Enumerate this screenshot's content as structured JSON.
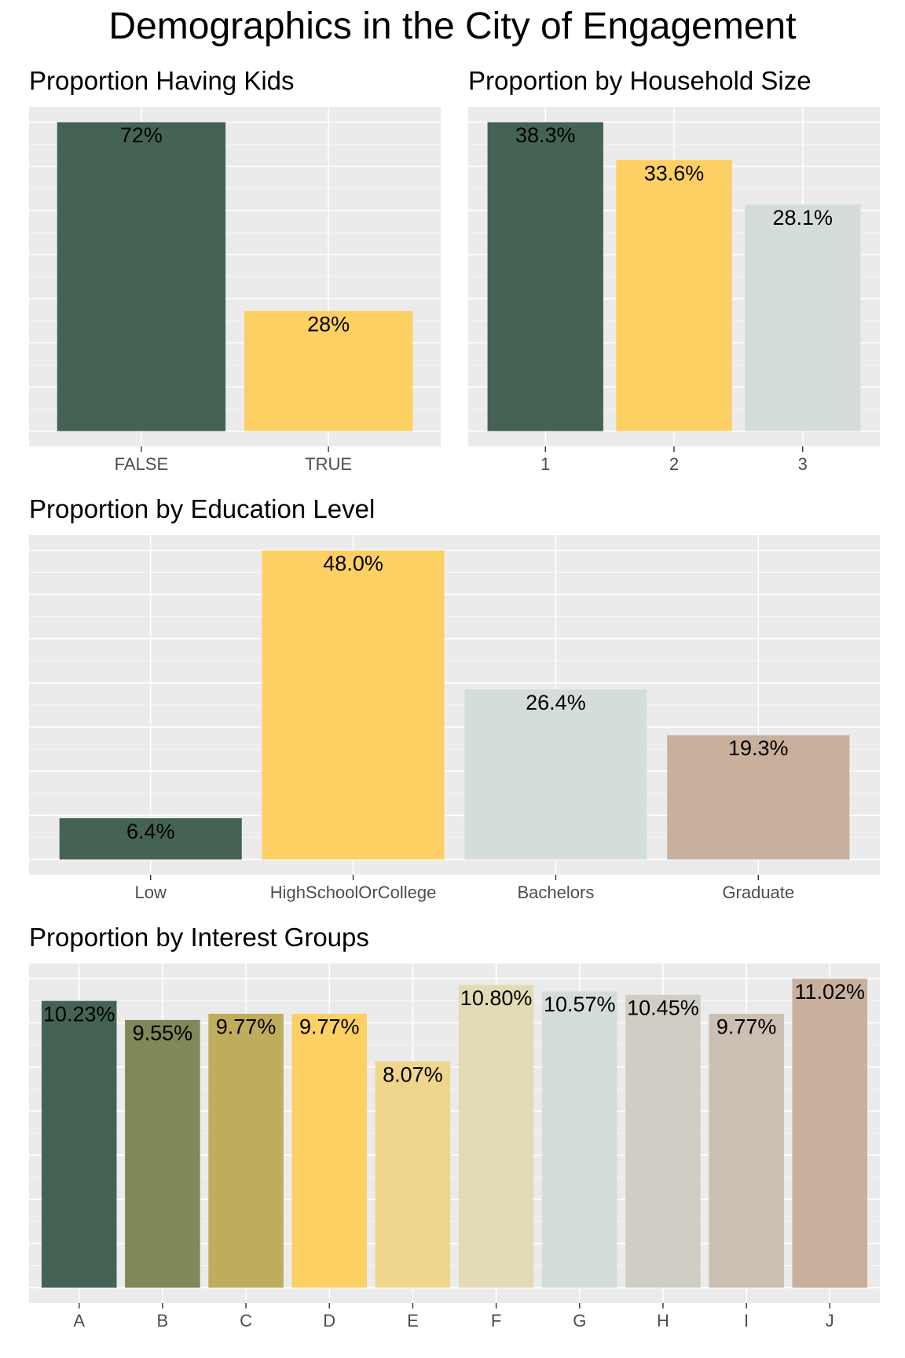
{
  "title": "Demographics in the City of Engagement",
  "chart_data": [
    {
      "type": "bar",
      "title": "Proportion Having Kids",
      "categories": [
        "FALSE",
        "TRUE"
      ],
      "values": [
        72,
        28
      ],
      "labels": [
        "72%",
        "28%"
      ],
      "colors": [
        "#456354",
        "#fdd063"
      ],
      "grid": true,
      "legend": "none"
    },
    {
      "type": "bar",
      "title": "Proportion by Household Size",
      "categories": [
        "1",
        "2",
        "3"
      ],
      "values": [
        38.3,
        33.6,
        28.1
      ],
      "labels": [
        "38.3%",
        "33.6%",
        "28.1%"
      ],
      "colors": [
        "#456354",
        "#fdd063",
        "#d4dddc"
      ],
      "grid": true,
      "legend": "none"
    },
    {
      "type": "bar",
      "title": "Proportion by Education Level",
      "categories": [
        "Low",
        "HighSchoolOrCollege",
        "Bachelors",
        "Graduate"
      ],
      "values": [
        6.4,
        48.0,
        26.4,
        19.3
      ],
      "labels": [
        "6.4%",
        "48.0%",
        "26.4%",
        "19.3%"
      ],
      "colors": [
        "#456354",
        "#fdd063",
        "#d4dddc",
        "#c8b09d"
      ],
      "grid": true,
      "legend": "none"
    },
    {
      "type": "bar",
      "title": "Proportion by Interest Groups",
      "categories": [
        "A",
        "B",
        "C",
        "D",
        "E",
        "F",
        "G",
        "H",
        "I",
        "J"
      ],
      "values": [
        10.23,
        9.55,
        9.77,
        9.77,
        8.07,
        10.8,
        10.57,
        10.45,
        9.77,
        11.02
      ],
      "labels": [
        "10.23%",
        "9.55%",
        "9.77%",
        "9.77%",
        "8.07%",
        "10.80%",
        "10.57%",
        "10.45%",
        "9.77%",
        "11.02%"
      ],
      "colors": [
        "#456354",
        "#7f8859",
        "#bfad5e",
        "#fdd063",
        "#f0d68c",
        "#e3dbb5",
        "#d4dddc",
        "#d0ceC4",
        "#cbbfb3",
        "#c8b09d"
      ],
      "grid": true,
      "legend": "none"
    }
  ]
}
